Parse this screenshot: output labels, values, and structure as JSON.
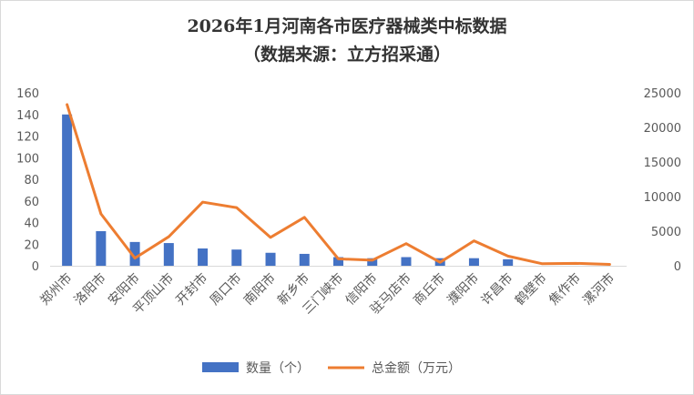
{
  "chart_data": {
    "type": "bar+line",
    "title": "2026年1月河南各市医疗器械类中标数据",
    "subtitle": "（数据来源：立方招采通）",
    "categories": [
      "郑州市",
      "洛阳市",
      "安阳市",
      "平顶山市",
      "开封市",
      "周口市",
      "南阳市",
      "新乡市",
      "三门峡市",
      "信阳市",
      "驻马店市",
      "商丘市",
      "濮阳市",
      "许昌市",
      "鹤壁市",
      "焦作市",
      "漯河市"
    ],
    "series": [
      {
        "name": "数量（个）",
        "type": "bar",
        "axis": "left",
        "color": "#4472c4",
        "values": [
          140,
          32,
          22,
          21,
          16,
          15,
          12,
          11,
          8,
          7,
          8,
          7,
          7,
          6,
          0,
          0,
          0
        ]
      },
      {
        "name": "总金额（万元）",
        "type": "line",
        "axis": "right",
        "color": "#ed7d31",
        "values": [
          23300,
          7500,
          1100,
          4200,
          9200,
          8400,
          4100,
          7000,
          1000,
          800,
          3200,
          500,
          3600,
          1400,
          300,
          350,
          200
        ]
      }
    ],
    "y_left": {
      "min": 0,
      "max": 160,
      "step": 20
    },
    "y_right": {
      "min": 0,
      "max": 25000,
      "step": 5000
    },
    "legend_position": "bottom",
    "grid": false
  }
}
